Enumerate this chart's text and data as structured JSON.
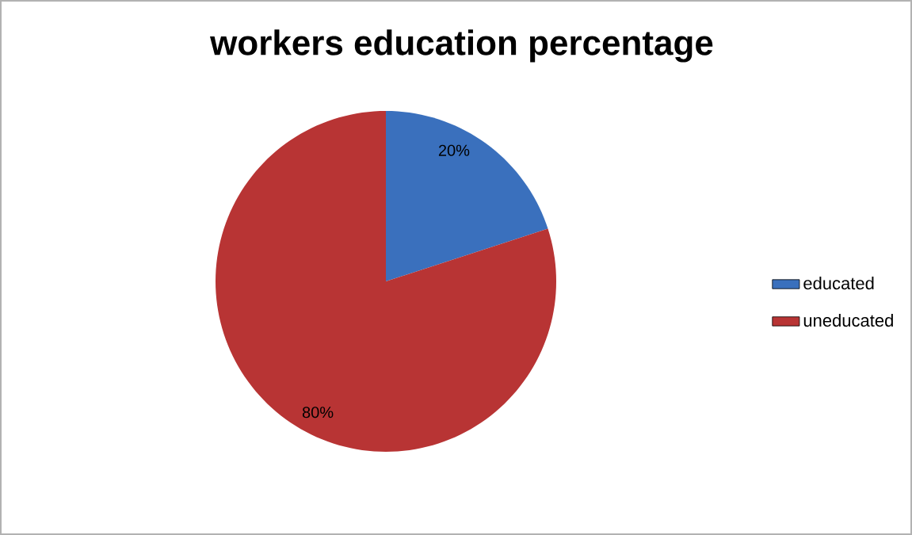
{
  "chart_data": {
    "type": "pie",
    "title": "workers education percentage",
    "categories": [
      "educated",
      "uneducated"
    ],
    "values": [
      20,
      80
    ],
    "colors": [
      "#3a70bd",
      "#b83434"
    ],
    "value_labels": [
      "20%",
      "80%"
    ],
    "legend": "right"
  }
}
